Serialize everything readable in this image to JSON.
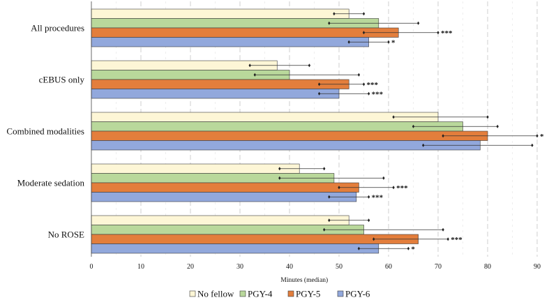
{
  "chart_data": {
    "type": "bar",
    "orientation": "horizontal",
    "title": "",
    "xlabel": "Minutes (median)",
    "ylabel": "",
    "xlim": [
      0,
      92
    ],
    "xticks": [
      0,
      10,
      20,
      30,
      40,
      50,
      60,
      70,
      80,
      90
    ],
    "grid": "vertical-dashed",
    "legend_position": "bottom",
    "categories": [
      "All procedures",
      "cEBUS only",
      "Combined modalities",
      "Moderate sedation",
      "No ROSE"
    ],
    "series": [
      {
        "name": "No fellow",
        "color": "#fdf6d6",
        "values": [
          52,
          37.5,
          70,
          42,
          52
        ],
        "err_low": [
          49,
          32,
          61,
          38,
          48
        ],
        "err_high": [
          55,
          44,
          80,
          47,
          56
        ],
        "significance": [
          "",
          "",
          "",
          "",
          ""
        ]
      },
      {
        "name": "PGY-4",
        "color": "#b9d89b",
        "values": [
          58,
          40,
          75,
          49,
          55
        ],
        "err_low": [
          48,
          33,
          65,
          38,
          47
        ],
        "err_high": [
          66,
          54,
          82,
          59,
          71
        ],
        "significance": [
          "",
          "",
          "",
          "",
          ""
        ]
      },
      {
        "name": "PGY-5",
        "color": "#e37e3c",
        "values": [
          62,
          52,
          80,
          54,
          66
        ],
        "err_low": [
          55,
          46,
          71,
          50,
          57
        ],
        "err_high": [
          70,
          55,
          90,
          61,
          72
        ],
        "significance": [
          "***",
          "***",
          "*",
          "***",
          "***"
        ]
      },
      {
        "name": "PGY-6",
        "color": "#92a8dc",
        "values": [
          56,
          50,
          78.5,
          53.5,
          58
        ],
        "err_low": [
          52,
          46,
          67,
          48,
          54
        ],
        "err_high": [
          60,
          56,
          89,
          56,
          64
        ],
        "significance": [
          "*",
          "***",
          "",
          "***",
          "*"
        ]
      }
    ]
  }
}
